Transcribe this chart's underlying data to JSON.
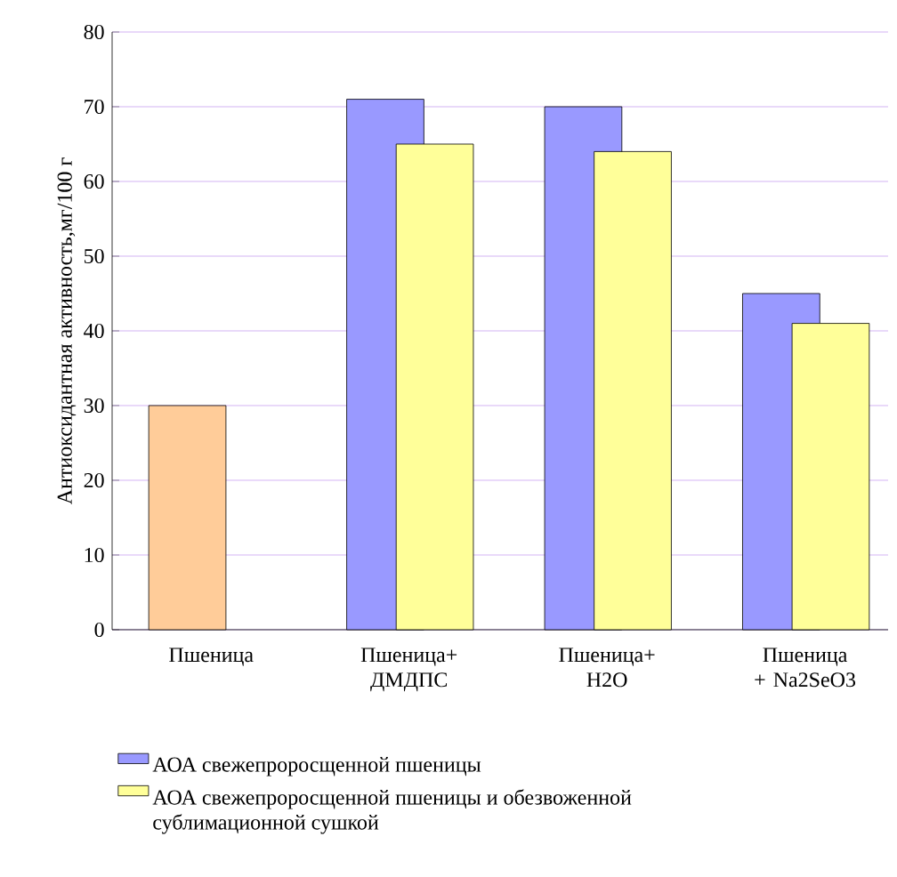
{
  "chart_data": {
    "type": "bar",
    "ylabel": "Антиоксидантная активность,мг/100 г",
    "categories": [
      "Пшеница",
      "Пшеница+ ДМДПС",
      "Пшеница+ H2O",
      "Пшеница + Na2SeO3"
    ],
    "series": [
      {
        "name": "АОА свежепроросщенной пшеницы",
        "color": "#9999ff",
        "colors": [
          "#ffcc99",
          "#9999ff",
          "#9999ff",
          "#9999ff"
        ],
        "values": [
          30,
          71,
          70,
          45
        ]
      },
      {
        "name": "АОА свежепроросщенной пшеницы и обезвоженной сублимационной сушкой",
        "color": "#ffff99",
        "values": [
          null,
          65,
          64,
          41
        ]
      }
    ],
    "ylim": [
      0,
      80
    ],
    "yticks": [
      0,
      10,
      20,
      30,
      40,
      50,
      60,
      70,
      80
    ],
    "grid": "y",
    "legend": "bottom"
  }
}
